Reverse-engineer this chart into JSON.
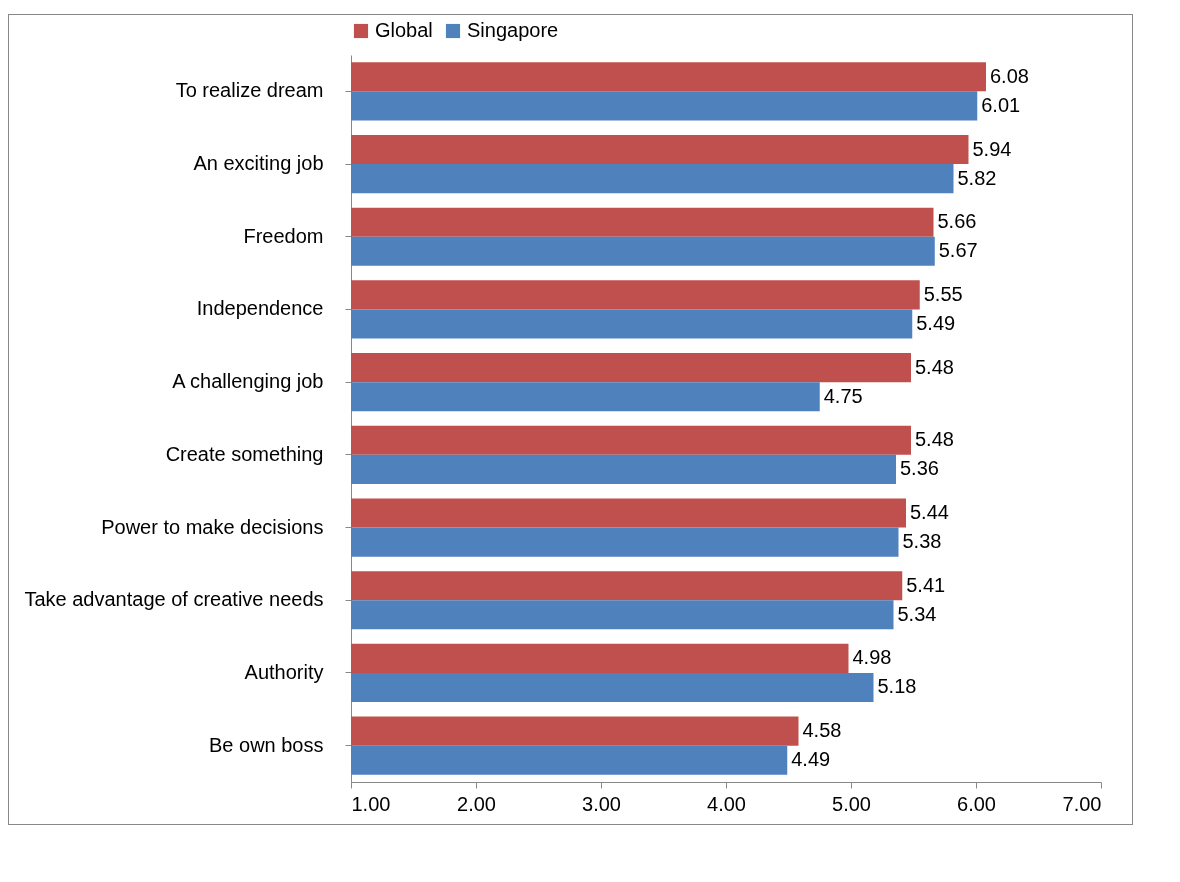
{
  "chart_data": {
    "type": "bar",
    "orientation": "horizontal",
    "categories": [
      "To realize dream",
      "An exciting job",
      "Freedom",
      "Independence",
      "A challenging job",
      "Create something",
      "Power to make decisions",
      "Take advantage of creative needs",
      "Authority",
      "Be own boss"
    ],
    "series": [
      {
        "name": "Global",
        "color": "#c0504d",
        "values": [
          6.08,
          5.94,
          5.66,
          5.55,
          5.48,
          5.48,
          5.44,
          5.41,
          4.98,
          4.58
        ]
      },
      {
        "name": "Singapore",
        "color": "#4f81bd",
        "values": [
          6.01,
          5.82,
          5.67,
          5.49,
          4.75,
          5.36,
          5.38,
          5.34,
          5.18,
          4.49
        ]
      }
    ],
    "xlim": [
      1,
      7
    ],
    "xticks": [
      {
        "value": 1,
        "label": "1.00"
      },
      {
        "value": 2,
        "label": "2.00"
      },
      {
        "value": 3,
        "label": "3.00"
      },
      {
        "value": 4,
        "label": "4.00"
      },
      {
        "value": 5,
        "label": "5.00"
      },
      {
        "value": 6,
        "label": "6.00"
      },
      {
        "value": 7,
        "label": "7.00"
      }
    ],
    "data_labels": true,
    "legend": "top",
    "grid": false
  }
}
